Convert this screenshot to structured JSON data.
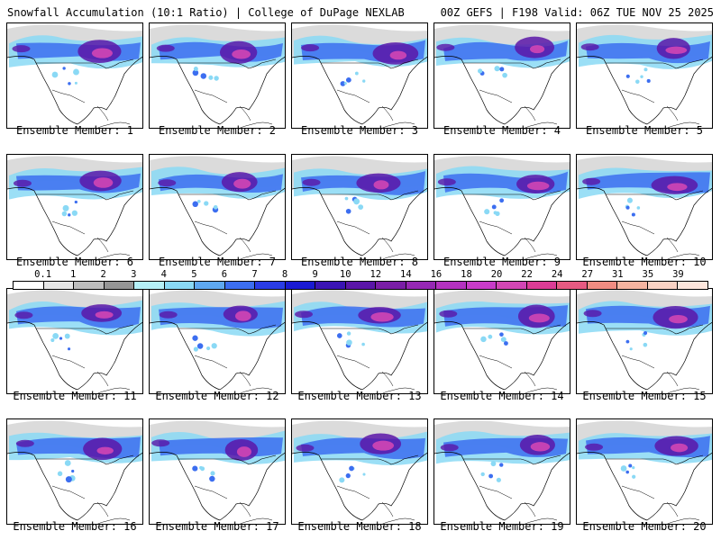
{
  "header": {
    "title_left": "Snowfall Accumulation (10:1 Ratio) | College of DuPage NEXLAB",
    "title_right": "00Z GEFS | F198 Valid: 06Z TUE NOV 25 2025"
  },
  "members": [
    {
      "label": "Ensemble Member: 1"
    },
    {
      "label": "Ensemble Member: 2"
    },
    {
      "label": "Ensemble Member: 3"
    },
    {
      "label": "Ensemble Member: 4"
    },
    {
      "label": "Ensemble Member: 5"
    },
    {
      "label": "Ensemble Member: 6"
    },
    {
      "label": "Ensemble Member: 7"
    },
    {
      "label": "Ensemble Member: 8"
    },
    {
      "label": "Ensemble Member: 9"
    },
    {
      "label": "Ensemble Member: 10"
    },
    {
      "label": "Ensemble Member: 11"
    },
    {
      "label": "Ensemble Member: 12"
    },
    {
      "label": "Ensemble Member: 13"
    },
    {
      "label": "Ensemble Member: 14"
    },
    {
      "label": "Ensemble Member: 15"
    },
    {
      "label": "Ensemble Member: 16"
    },
    {
      "label": "Ensemble Member: 17"
    },
    {
      "label": "Ensemble Member: 18"
    },
    {
      "label": "Ensemble Member: 19"
    },
    {
      "label": "Ensemble Member: 20"
    }
  ],
  "colorbar": {
    "labels": [
      "0.1",
      "1",
      "2",
      "3",
      "4",
      "5",
      "6",
      "7",
      "8",
      "9",
      "10",
      "12",
      "14",
      "16",
      "18",
      "20",
      "22",
      "24",
      "27",
      "31",
      "35",
      "39"
    ],
    "colors": [
      "#ffffff",
      "#e6e6e6",
      "#bdbdbd",
      "#969696",
      "#b5f0f7",
      "#8ad9f5",
      "#5fa8f0",
      "#3c6ef0",
      "#2a3ce6",
      "#1a1ad2",
      "#3a14b4",
      "#5a16a8",
      "#7a1ea6",
      "#9628b4",
      "#b432c0",
      "#c83cc8",
      "#d246b4",
      "#dc3c96",
      "#e65a82",
      "#f08c82",
      "#f5b4a0",
      "#fad2c3",
      "#fde6dc"
    ]
  },
  "colors": {
    "snow_light": "#8ad9f5",
    "snow_mid": "#3c6ef0",
    "snow_heavy": "#5a16a8",
    "snow_max": "#d246b4",
    "grey_trace": "#bdbdbd"
  }
}
